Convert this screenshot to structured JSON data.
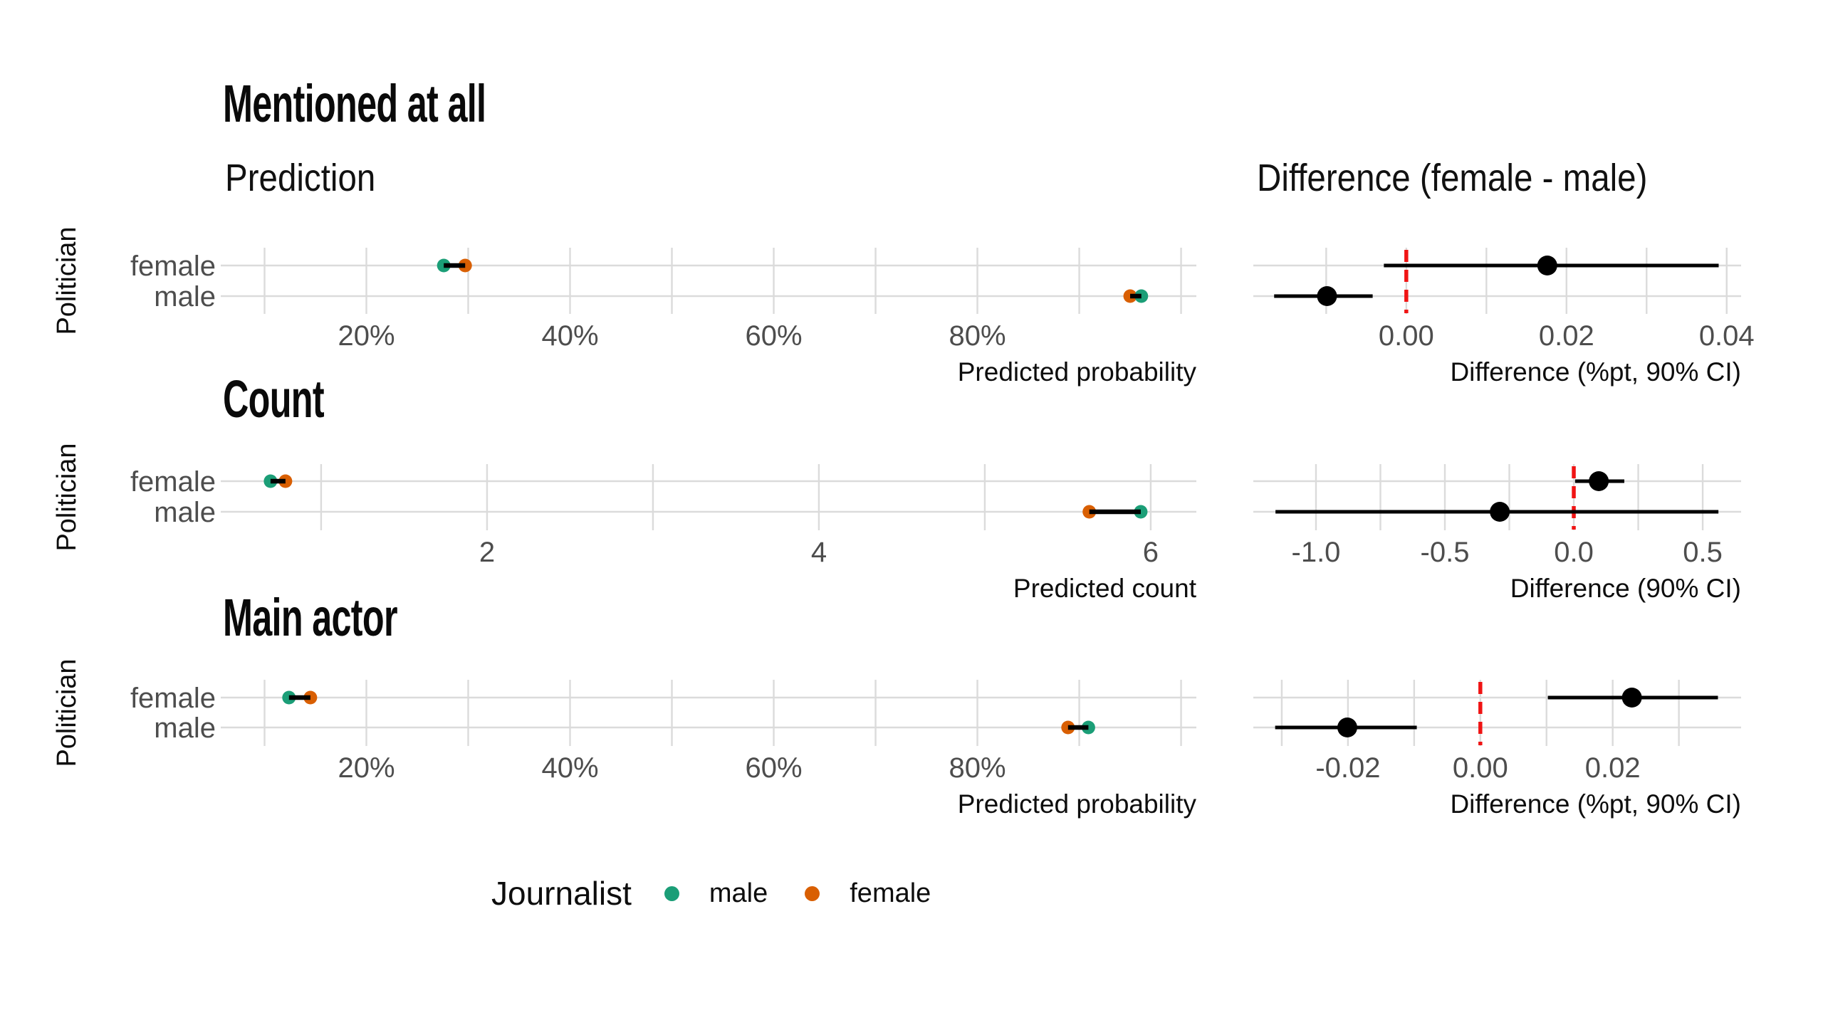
{
  "legend": {
    "title": "Journalist",
    "items": [
      {
        "label": "male",
        "color": "#1B9E77"
      },
      {
        "label": "female",
        "color": "#D95F02"
      }
    ]
  },
  "colors": {
    "male": "#1B9E77",
    "female": "#D95F02",
    "difference_point": "#000000",
    "connector": "#000000",
    "zero_line": "#F01414",
    "gridline": "#DBDBDB",
    "tick_label": "#4D4D4D",
    "axis_label": "#0D0D0D"
  },
  "chart_data": [
    {
      "type": "scatter",
      "section_title": "Mentioned at all",
      "prediction": {
        "subtitle": "Prediction",
        "ylabel": "Politician",
        "xlabel": "Predicted probability",
        "x_domain": [
          0.057,
          1.015
        ],
        "gridlines": [
          0.1,
          0.2,
          0.3,
          0.4,
          0.5,
          0.6,
          0.7,
          0.8,
          0.9,
          1.0
        ],
        "ticks": [
          {
            "value": 0.2,
            "label": "20%"
          },
          {
            "value": 0.4,
            "label": "40%"
          },
          {
            "value": 0.6,
            "label": "60%"
          },
          {
            "value": 0.8,
            "label": "80%"
          }
        ],
        "rows": [
          {
            "label": "female",
            "points": [
              {
                "journalist": "male",
                "value": 0.276
              },
              {
                "journalist": "female",
                "value": 0.297
              }
            ]
          },
          {
            "label": "male",
            "points": [
              {
                "journalist": "female",
                "value": 0.95
              },
              {
                "journalist": "male",
                "value": 0.961
              }
            ]
          }
        ]
      },
      "difference": {
        "subtitle": "Difference (female - male)",
        "xlabel": "Difference (%pt, 90% CI)",
        "x_domain": [
          -0.0191,
          0.0418
        ],
        "gridlines": [
          -0.01,
          0,
          0.01,
          0.02,
          0.03,
          0.04
        ],
        "ticks": [
          {
            "value": 0,
            "label": "0.00"
          },
          {
            "value": 0.02,
            "label": "0.02"
          },
          {
            "value": 0.04,
            "label": "0.04"
          }
        ],
        "zero_line": 0,
        "rows": [
          {
            "label": "female",
            "estimate": 0.0176,
            "ci_low": -0.0028,
            "ci_high": 0.039
          },
          {
            "label": "male",
            "estimate": -0.0099,
            "ci_low": -0.0165,
            "ci_high": -0.0042
          }
        ]
      }
    },
    {
      "type": "scatter",
      "section_title": "Count",
      "prediction": {
        "ylabel": "Politician",
        "xlabel": "Predicted count",
        "x_domain": [
          0.395,
          6.275
        ],
        "gridlines": [
          1,
          2,
          3,
          4,
          5,
          6
        ],
        "ticks": [
          {
            "value": 2,
            "label": "2"
          },
          {
            "value": 4,
            "label": "4"
          },
          {
            "value": 6,
            "label": "6"
          }
        ],
        "rows": [
          {
            "label": "female",
            "points": [
              {
                "journalist": "male",
                "value": 0.695
              },
              {
                "journalist": "female",
                "value": 0.785
              }
            ]
          },
          {
            "label": "male",
            "points": [
              {
                "journalist": "female",
                "value": 5.63
              },
              {
                "journalist": "male",
                "value": 5.94
              }
            ]
          }
        ]
      },
      "difference": {
        "xlabel": "Difference (90% CI)",
        "x_domain": [
          -1.243,
          0.649
        ],
        "gridlines": [
          -1.0,
          -0.75,
          -0.5,
          -0.25,
          0,
          0.25,
          0.5
        ],
        "ticks": [
          {
            "value": -1.0,
            "label": "-1.0"
          },
          {
            "value": -0.5,
            "label": "-0.5"
          },
          {
            "value": 0,
            "label": "0.0"
          },
          {
            "value": 0.5,
            "label": "0.5"
          }
        ],
        "zero_line": 0,
        "rows": [
          {
            "label": "female",
            "estimate": 0.097,
            "ci_low": 0.005,
            "ci_high": 0.196
          },
          {
            "label": "male",
            "estimate": -0.287,
            "ci_low": -1.157,
            "ci_high": 0.561
          }
        ]
      }
    },
    {
      "type": "scatter",
      "section_title": "Main actor",
      "prediction": {
        "ylabel": "Politician",
        "xlabel": "Predicted probability",
        "x_domain": [
          0.057,
          1.015
        ],
        "gridlines": [
          0.1,
          0.2,
          0.3,
          0.4,
          0.5,
          0.6,
          0.7,
          0.8,
          0.9,
          1.0
        ],
        "ticks": [
          {
            "value": 0.2,
            "label": "20%"
          },
          {
            "value": 0.4,
            "label": "40%"
          },
          {
            "value": 0.6,
            "label": "60%"
          },
          {
            "value": 0.8,
            "label": "80%"
          }
        ],
        "rows": [
          {
            "label": "female",
            "points": [
              {
                "journalist": "male",
                "value": 0.124
              },
              {
                "journalist": "female",
                "value": 0.145
              }
            ]
          },
          {
            "label": "male",
            "points": [
              {
                "journalist": "female",
                "value": 0.889
              },
              {
                "journalist": "male",
                "value": 0.909
              }
            ]
          }
        ]
      },
      "difference": {
        "xlabel": "Difference (%pt, 90% CI)",
        "x_domain": [
          -0.0343,
          0.0394
        ],
        "gridlines": [
          -0.03,
          -0.02,
          -0.01,
          0,
          0.01,
          0.02,
          0.03
        ],
        "ticks": [
          {
            "value": -0.02,
            "label": "-0.02"
          },
          {
            "value": 0,
            "label": "0.00"
          },
          {
            "value": 0.02,
            "label": "0.02"
          }
        ],
        "zero_line": 0,
        "rows": [
          {
            "label": "female",
            "estimate": 0.0229,
            "ci_low": 0.0102,
            "ci_high": 0.0359
          },
          {
            "label": "male",
            "estimate": -0.0201,
            "ci_low": -0.031,
            "ci_high": -0.0096
          }
        ]
      }
    }
  ]
}
